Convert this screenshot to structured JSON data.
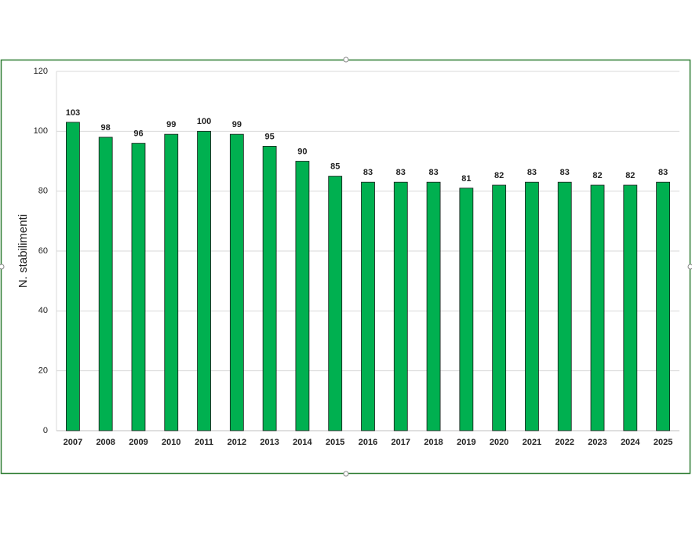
{
  "chart_data": {
    "type": "bar",
    "y_label": "N. stabilimenti",
    "categories": [
      "2007",
      "2008",
      "2009",
      "2010",
      "2011",
      "2012",
      "2013",
      "2014",
      "2015",
      "2016",
      "2017",
      "2018",
      "2019",
      "2020",
      "2021",
      "2022",
      "2023",
      "2024",
      "2025"
    ],
    "values": [
      103,
      98,
      96,
      99,
      100,
      99,
      95,
      90,
      85,
      83,
      83,
      83,
      81,
      82,
      83,
      83,
      82,
      82,
      83
    ],
    "color": "#00b050",
    "ylim": [
      0,
      120
    ],
    "yticks": [
      0,
      20,
      40,
      60,
      80,
      100,
      120
    ],
    "grid": true
  }
}
